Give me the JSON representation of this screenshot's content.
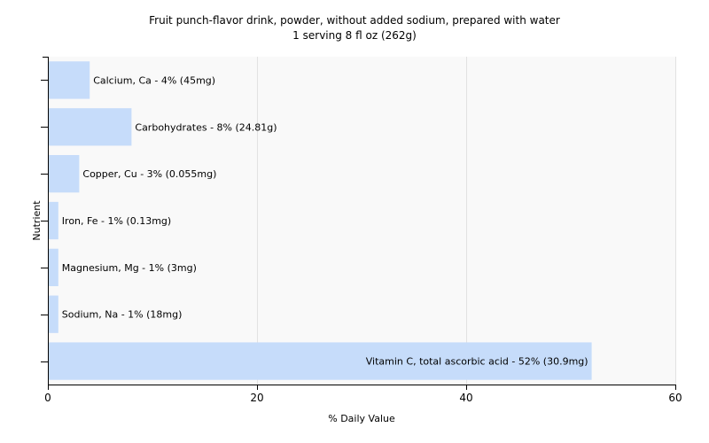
{
  "chart_data": {
    "type": "bar",
    "orientation": "horizontal",
    "title": "Fruit punch-flavor drink, powder, without added sodium, prepared with water",
    "subtitle": "1 serving 8 fl oz (262g)",
    "xlabel": "% Daily Value",
    "ylabel": "Nutrient",
    "xlim": [
      0,
      60
    ],
    "xticks": [
      0,
      20,
      40,
      60
    ],
    "grid": "vertical",
    "legend": "none",
    "bar_color": "#c6dcfa",
    "categories": [
      "Calcium, Ca",
      "Carbohydrates",
      "Copper, Cu",
      "Iron, Fe",
      "Magnesium, Mg",
      "Sodium, Na",
      "Vitamin C, total ascorbic acid"
    ],
    "values": [
      4,
      8,
      3,
      1,
      1,
      1,
      52
    ],
    "labels": [
      "Calcium, Ca - 4% (45mg)",
      "Carbohydrates - 8% (24.81g)",
      "Copper, Cu - 3% (0.055mg)",
      "Iron, Fe - 1% (0.13mg)",
      "Magnesium, Mg - 1% (3mg)",
      "Sodium, Na - 1% (18mg)",
      "Vitamin C, total ascorbic acid - 52% (30.9mg)"
    ]
  }
}
